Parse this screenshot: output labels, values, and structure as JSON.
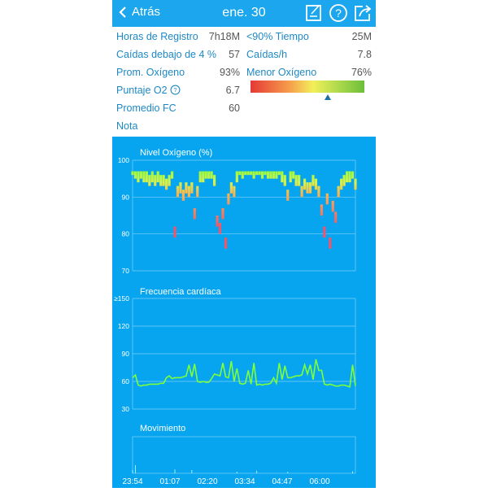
{
  "header": {
    "back_label": "Atrás",
    "title": "ene. 30",
    "icons": [
      "edit-note-icon",
      "help-icon",
      "share-icon"
    ]
  },
  "stats": {
    "left": [
      {
        "label": "Horas de Registro",
        "value": "7h18M"
      },
      {
        "label": "Caídas debajo de 4 %",
        "value": "57"
      },
      {
        "label": "Prom. Oxígeno",
        "value": "93%"
      },
      {
        "label": "Puntaje O2",
        "value": "6.7"
      },
      {
        "label": "Promedio FC",
        "value": "60"
      },
      {
        "label": "Nota",
        "value": ""
      }
    ],
    "right": [
      {
        "label": "<90% Tiempo",
        "value": "25M"
      },
      {
        "label": "Caídas/h",
        "value": "7.8"
      },
      {
        "label": "Menor Oxígeno",
        "value": "76%"
      }
    ],
    "score_gauge_position": 0.68
  },
  "colors": {
    "header": "#1ca6ee",
    "chart_bg": "#07a5ef",
    "hr_line": "#7dff3a",
    "label": "#1e88c4"
  },
  "chart_data": [
    {
      "type": "bar",
      "title": "Nivel Oxígeno (%)",
      "ylim": [
        70,
        100
      ],
      "yticks": [
        "100",
        "90",
        "80",
        "70"
      ],
      "grid": true,
      "values": [
        96,
        95,
        94,
        95,
        94,
        94,
        93,
        94,
        93,
        94,
        93,
        93,
        92,
        93,
        95,
        79,
        90,
        91,
        89,
        91,
        90,
        91,
        84,
        90,
        94,
        94,
        95,
        95,
        95,
        93,
        82,
        80,
        84,
        76,
        88,
        91,
        90,
        94,
        96,
        95,
        96,
        96,
        96,
        95,
        96,
        96,
        95,
        96,
        95,
        95,
        95,
        95,
        96,
        94,
        93,
        89,
        94,
        95,
        93,
        93,
        90,
        92,
        91,
        91,
        93,
        92,
        90,
        85,
        79,
        88,
        76,
        86,
        83,
        90,
        92,
        93,
        94,
        94,
        95,
        92
      ]
    },
    {
      "type": "line",
      "title": "Frecuencia cardíaca",
      "ylim": [
        30,
        150
      ],
      "yticks": [
        "≥150",
        "120",
        "90",
        "60",
        "30"
      ],
      "grid": true,
      "values": [
        64,
        67,
        56,
        55,
        56,
        56,
        57,
        57,
        57,
        57,
        58,
        58,
        64,
        66,
        63,
        64,
        64,
        64,
        65,
        66,
        78,
        65,
        79,
        60,
        59,
        60,
        59,
        59,
        63,
        68,
        67,
        66,
        80,
        65,
        64,
        82,
        60,
        74,
        58,
        57,
        58,
        72,
        57,
        80,
        56,
        57,
        56,
        57,
        57,
        58,
        64,
        58,
        80,
        62,
        77,
        64,
        64,
        65,
        66,
        66,
        67,
        78,
        68,
        78,
        62,
        84,
        72,
        72,
        57,
        56,
        57,
        56,
        55,
        55,
        56,
        56,
        55,
        54,
        78,
        55
      ]
    },
    {
      "type": "bar",
      "title": "Movimiento",
      "ylim": [
        0,
        1
      ],
      "values": [
        0.1,
        0.25,
        0,
        0,
        0,
        0,
        0,
        0,
        0,
        0,
        0,
        0,
        0,
        0,
        0,
        0.12,
        0,
        0,
        0,
        0,
        0,
        0.1,
        0,
        0,
        0,
        0,
        0,
        0,
        0,
        0,
        0,
        0,
        0,
        0,
        0,
        0,
        0,
        0.05,
        0,
        0,
        0,
        0,
        0,
        0,
        0.08,
        0,
        0,
        0,
        0,
        0,
        0,
        0,
        0,
        0,
        0,
        0.05,
        0,
        0,
        0,
        0,
        0,
        0,
        0,
        0,
        0,
        0,
        0,
        0,
        0,
        0,
        0,
        0,
        0,
        0,
        0,
        0,
        0,
        0,
        0.06,
        0
      ]
    },
    {
      "xticks": [
        "23:54",
        "01:07",
        "02:20",
        "03:34",
        "04:47",
        "06:00"
      ]
    }
  ]
}
